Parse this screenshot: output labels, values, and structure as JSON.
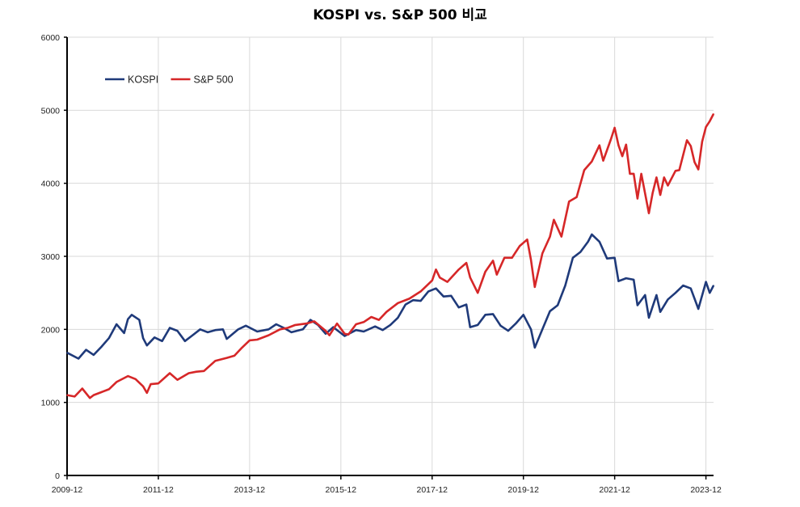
{
  "chart_data": {
    "type": "line",
    "title": "KOSPI vs. S&P 500 비교",
    "xlabel": "",
    "ylabel": "",
    "ylim": [
      0,
      6000
    ],
    "yticks": [
      0,
      1000,
      2000,
      3000,
      4000,
      5000,
      6000
    ],
    "xticks": [
      "2009-12",
      "2011-12",
      "2013-12",
      "2015-12",
      "2017-12",
      "2019-12",
      "2021-12",
      "2023-12"
    ],
    "xrange": [
      "2009-12",
      "2024-02"
    ],
    "grid": "vertical and horizontal, light gray",
    "legend": "top-left",
    "series": [
      {
        "name": "KOSPI",
        "color": "#1f3a7a",
        "points": [
          [
            "2009-12",
            1680
          ],
          [
            "2010-03",
            1600
          ],
          [
            "2010-05",
            1720
          ],
          [
            "2010-07",
            1650
          ],
          [
            "2010-09",
            1760
          ],
          [
            "2010-11",
            1880
          ],
          [
            "2011-01",
            2070
          ],
          [
            "2011-03",
            1950
          ],
          [
            "2011-04",
            2140
          ],
          [
            "2011-05",
            2200
          ],
          [
            "2011-07",
            2130
          ],
          [
            "2011-08",
            1880
          ],
          [
            "2011-09",
            1780
          ],
          [
            "2011-11",
            1890
          ],
          [
            "2012-01",
            1840
          ],
          [
            "2012-03",
            2020
          ],
          [
            "2012-05",
            1980
          ],
          [
            "2012-07",
            1840
          ],
          [
            "2012-09",
            1920
          ],
          [
            "2012-11",
            2000
          ],
          [
            "2013-01",
            1960
          ],
          [
            "2013-03",
            1990
          ],
          [
            "2013-05",
            2000
          ],
          [
            "2013-06",
            1870
          ],
          [
            "2013-09",
            2000
          ],
          [
            "2013-11",
            2050
          ],
          [
            "2014-02",
            1970
          ],
          [
            "2014-05",
            2000
          ],
          [
            "2014-07",
            2070
          ],
          [
            "2014-09",
            2020
          ],
          [
            "2014-11",
            1960
          ],
          [
            "2015-02",
            2000
          ],
          [
            "2015-04",
            2130
          ],
          [
            "2015-06",
            2060
          ],
          [
            "2015-08",
            1940
          ],
          [
            "2015-10",
            2030
          ],
          [
            "2016-01",
            1910
          ],
          [
            "2016-04",
            1990
          ],
          [
            "2016-06",
            1970
          ],
          [
            "2016-09",
            2040
          ],
          [
            "2016-11",
            1990
          ],
          [
            "2017-01",
            2060
          ],
          [
            "2017-03",
            2160
          ],
          [
            "2017-05",
            2340
          ],
          [
            "2017-07",
            2400
          ],
          [
            "2017-09",
            2390
          ],
          [
            "2017-11",
            2520
          ],
          [
            "2018-01",
            2560
          ],
          [
            "2018-03",
            2450
          ],
          [
            "2018-05",
            2460
          ],
          [
            "2018-07",
            2300
          ],
          [
            "2018-09",
            2340
          ],
          [
            "2018-10",
            2030
          ],
          [
            "2018-12",
            2060
          ],
          [
            "2019-02",
            2200
          ],
          [
            "2019-04",
            2210
          ],
          [
            "2019-06",
            2050
          ],
          [
            "2019-08",
            1980
          ],
          [
            "2019-10",
            2080
          ],
          [
            "2019-12",
            2200
          ],
          [
            "2020-02",
            2000
          ],
          [
            "2020-03",
            1750
          ],
          [
            "2020-05",
            2000
          ],
          [
            "2020-07",
            2250
          ],
          [
            "2020-09",
            2330
          ],
          [
            "2020-11",
            2600
          ],
          [
            "2021-01",
            2980
          ],
          [
            "2021-03",
            3060
          ],
          [
            "2021-05",
            3200
          ],
          [
            "2021-06",
            3300
          ],
          [
            "2021-08",
            3200
          ],
          [
            "2021-10",
            2970
          ],
          [
            "2021-12",
            2980
          ],
          [
            "2022-01",
            2660
          ],
          [
            "2022-03",
            2700
          ],
          [
            "2022-05",
            2680
          ],
          [
            "2022-06",
            2330
          ],
          [
            "2022-08",
            2470
          ],
          [
            "2022-09",
            2160
          ],
          [
            "2022-11",
            2470
          ],
          [
            "2022-12",
            2240
          ],
          [
            "2023-02",
            2410
          ],
          [
            "2023-04",
            2500
          ],
          [
            "2023-06",
            2600
          ],
          [
            "2023-08",
            2560
          ],
          [
            "2023-10",
            2280
          ],
          [
            "2023-12",
            2650
          ],
          [
            "2024-01",
            2500
          ],
          [
            "2024-02",
            2600
          ]
        ]
      },
      {
        "name": "S&P 500",
        "color": "#d62728",
        "points": [
          [
            "2009-12",
            1100
          ],
          [
            "2010-02",
            1080
          ],
          [
            "2010-04",
            1190
          ],
          [
            "2010-06",
            1060
          ],
          [
            "2010-07",
            1100
          ],
          [
            "2010-09",
            1140
          ],
          [
            "2010-11",
            1180
          ],
          [
            "2011-01",
            1280
          ],
          [
            "2011-04",
            1360
          ],
          [
            "2011-06",
            1320
          ],
          [
            "2011-08",
            1220
          ],
          [
            "2011-09",
            1130
          ],
          [
            "2011-10",
            1250
          ],
          [
            "2011-12",
            1260
          ],
          [
            "2012-03",
            1400
          ],
          [
            "2012-05",
            1310
          ],
          [
            "2012-08",
            1400
          ],
          [
            "2012-10",
            1420
          ],
          [
            "2012-12",
            1430
          ],
          [
            "2013-03",
            1570
          ],
          [
            "2013-06",
            1610
          ],
          [
            "2013-08",
            1640
          ],
          [
            "2013-10",
            1750
          ],
          [
            "2013-12",
            1850
          ],
          [
            "2014-02",
            1860
          ],
          [
            "2014-05",
            1920
          ],
          [
            "2014-08",
            2000
          ],
          [
            "2014-10",
            2020
          ],
          [
            "2014-12",
            2060
          ],
          [
            "2015-03",
            2080
          ],
          [
            "2015-05",
            2110
          ],
          [
            "2015-08",
            1980
          ],
          [
            "2015-09",
            1920
          ],
          [
            "2015-11",
            2080
          ],
          [
            "2016-01",
            1940
          ],
          [
            "2016-02",
            1930
          ],
          [
            "2016-04",
            2070
          ],
          [
            "2016-06",
            2100
          ],
          [
            "2016-08",
            2170
          ],
          [
            "2016-10",
            2130
          ],
          [
            "2016-12",
            2240
          ],
          [
            "2017-03",
            2360
          ],
          [
            "2017-06",
            2420
          ],
          [
            "2017-09",
            2520
          ],
          [
            "2017-12",
            2670
          ],
          [
            "2018-01",
            2820
          ],
          [
            "2018-02",
            2710
          ],
          [
            "2018-04",
            2650
          ],
          [
            "2018-07",
            2820
          ],
          [
            "2018-09",
            2910
          ],
          [
            "2018-10",
            2710
          ],
          [
            "2018-12",
            2500
          ],
          [
            "2019-02",
            2790
          ],
          [
            "2019-04",
            2940
          ],
          [
            "2019-05",
            2750
          ],
          [
            "2019-07",
            2980
          ],
          [
            "2019-09",
            2980
          ],
          [
            "2019-11",
            3140
          ],
          [
            "2020-01",
            3230
          ],
          [
            "2020-02",
            2950
          ],
          [
            "2020-03",
            2580
          ],
          [
            "2020-05",
            3040
          ],
          [
            "2020-07",
            3270
          ],
          [
            "2020-08",
            3500
          ],
          [
            "2020-10",
            3270
          ],
          [
            "2020-12",
            3750
          ],
          [
            "2021-02",
            3810
          ],
          [
            "2021-04",
            4180
          ],
          [
            "2021-06",
            4300
          ],
          [
            "2021-08",
            4520
          ],
          [
            "2021-09",
            4310
          ],
          [
            "2021-11",
            4600
          ],
          [
            "2021-12",
            4760
          ],
          [
            "2022-01",
            4520
          ],
          [
            "2022-02",
            4370
          ],
          [
            "2022-03",
            4530
          ],
          [
            "2022-04",
            4130
          ],
          [
            "2022-05",
            4130
          ],
          [
            "2022-06",
            3790
          ],
          [
            "2022-07",
            4130
          ],
          [
            "2022-09",
            3590
          ],
          [
            "2022-10",
            3870
          ],
          [
            "2022-11",
            4080
          ],
          [
            "2022-12",
            3840
          ],
          [
            "2023-01",
            4080
          ],
          [
            "2023-02",
            3970
          ],
          [
            "2023-04",
            4170
          ],
          [
            "2023-05",
            4180
          ],
          [
            "2023-07",
            4590
          ],
          [
            "2023-08",
            4510
          ],
          [
            "2023-09",
            4290
          ],
          [
            "2023-10",
            4190
          ],
          [
            "2023-11",
            4570
          ],
          [
            "2023-12",
            4770
          ],
          [
            "2024-01",
            4850
          ],
          [
            "2024-02",
            4950
          ]
        ]
      }
    ]
  }
}
